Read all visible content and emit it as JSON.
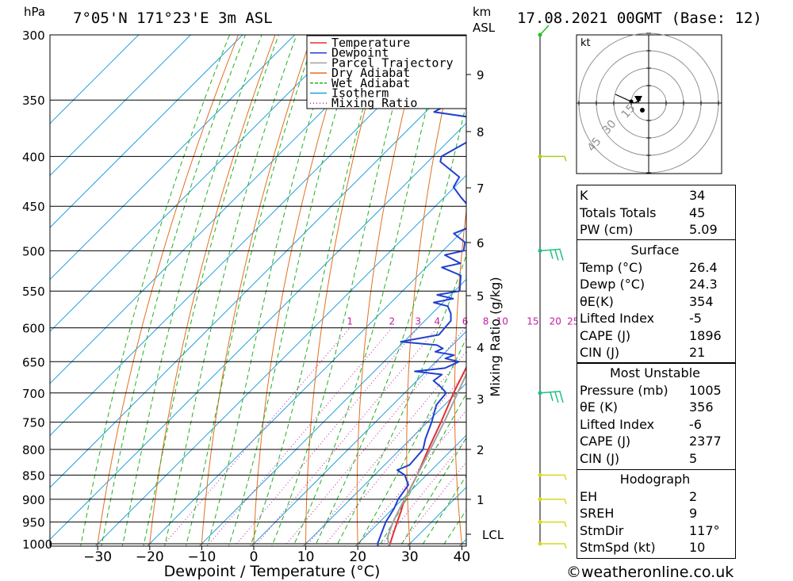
{
  "header": {
    "hpa_label": "hPa",
    "location": "7°05'N  171°23'E  3m  ASL",
    "km_label": "km",
    "asl_label": "ASL",
    "date": "17.08.2021  00GMT  (Base: 12)"
  },
  "chart_data": {
    "type": "line",
    "chart_kind": "skew-T log-p sounding diagram",
    "xlabel": "Dewpoint / Temperature (°C)",
    "ylabel": "hPa",
    "mixing_ratio_axis_label": "Mixing Ratio (g/kg)",
    "x_ticks": [
      -30,
      -20,
      -10,
      0,
      10,
      20,
      30,
      40
    ],
    "pressure_levels": [
      300,
      350,
      400,
      450,
      500,
      550,
      600,
      650,
      700,
      750,
      800,
      850,
      900,
      950,
      1000
    ],
    "km_ticks": [
      1,
      2,
      3,
      4,
      5,
      6,
      7,
      8,
      9
    ],
    "lcl_label": "LCL",
    "mixing_ratio_labels": [
      1,
      2,
      3,
      4,
      6,
      8,
      10,
      15,
      20,
      25
    ],
    "legend": [
      "Temperature",
      "Dewpoint",
      "Parcel Trajectory",
      "Dry Adiabat",
      "Wet Adiabat",
      "Isotherm",
      "Mixing Ratio"
    ],
    "colors": {
      "temperature": "#e03030",
      "dewpoint": "#2040d0",
      "parcel": "#a0a0a0",
      "dry_adiabat": "#e07020",
      "wet_adiabat": "#20b020",
      "isotherm": "#20a0e0",
      "mixing_ratio": "#c020a0",
      "wind": "#20c020"
    },
    "series": [
      {
        "name": "Temperature",
        "points": [
          [
            1005,
            26.4
          ],
          [
            1000,
            26.2
          ],
          [
            975,
            24.8
          ],
          [
            950,
            23.4
          ],
          [
            925,
            22.0
          ],
          [
            900,
            20.4
          ],
          [
            880,
            19.6
          ],
          [
            850,
            18.2
          ],
          [
            800,
            15.4
          ],
          [
            750,
            12.6
          ],
          [
            700,
            9.4
          ],
          [
            650,
            6.4
          ],
          [
            600,
            3.0
          ],
          [
            550,
            -1.4
          ],
          [
            500,
            -6.4
          ],
          [
            450,
            -12.4
          ],
          [
            400,
            -19.8
          ],
          [
            370,
            -24.2
          ],
          [
            350,
            -27.6
          ],
          [
            325,
            -31.8
          ],
          [
            300,
            -36.2
          ]
        ]
      },
      {
        "name": "Dewpoint",
        "points": [
          [
            1005,
            24.3
          ],
          [
            1000,
            23.8
          ],
          [
            950,
            21.2
          ],
          [
            920,
            20.2
          ],
          [
            900,
            19.2
          ],
          [
            870,
            18.4
          ],
          [
            850,
            15.8
          ],
          [
            840,
            13.4
          ],
          [
            830,
            14.8
          ],
          [
            800,
            14.4
          ],
          [
            780,
            12.8
          ],
          [
            750,
            10.8
          ],
          [
            720,
            8.4
          ],
          [
            700,
            8.0
          ],
          [
            690,
            5.8
          ],
          [
            680,
            3.2
          ],
          [
            670,
            3.6
          ],
          [
            665,
            -2.2
          ],
          [
            660,
            3.0
          ],
          [
            650,
            4.4
          ],
          [
            645,
            1.2
          ],
          [
            640,
            2.2
          ],
          [
            635,
            -2.0
          ],
          [
            630,
            -1.2
          ],
          [
            625,
            -3.0
          ],
          [
            620,
            -10.6
          ],
          [
            610,
            -4.6
          ],
          [
            600,
            -4.8
          ],
          [
            590,
            -5.0
          ],
          [
            580,
            -6.4
          ],
          [
            570,
            -8.4
          ],
          [
            565,
            -11.8
          ],
          [
            560,
            -8.8
          ],
          [
            555,
            -12.6
          ],
          [
            550,
            -9.0
          ],
          [
            540,
            -10.4
          ],
          [
            530,
            -11.8
          ],
          [
            520,
            -17.0
          ],
          [
            515,
            -14.2
          ],
          [
            505,
            -18.8
          ],
          [
            500,
            -16.0
          ],
          [
            490,
            -17.4
          ],
          [
            480,
            -21.2
          ],
          [
            470,
            -18.6
          ],
          [
            460,
            -21.2
          ],
          [
            450,
            -23.6
          ],
          [
            440,
            -27.0
          ],
          [
            430,
            -30.2
          ],
          [
            420,
            -31.0
          ],
          [
            405,
            -37.6
          ],
          [
            400,
            -38.4
          ],
          [
            390,
            -36.8
          ],
          [
            380,
            -35.2
          ],
          [
            365,
            -39.6
          ],
          [
            360,
            -48.4
          ],
          [
            350,
            -46.4
          ],
          [
            340,
            -47.4
          ],
          [
            320,
            -44.4
          ],
          [
            300,
            -50.2
          ]
        ]
      },
      {
        "name": "Parcel Trajectory",
        "points": [
          [
            1005,
            26.4
          ],
          [
            984,
            24.4
          ],
          [
            950,
            22.6
          ],
          [
            900,
            20.4
          ],
          [
            850,
            18.2
          ],
          [
            800,
            15.8
          ],
          [
            750,
            13.2
          ],
          [
            700,
            10.2
          ],
          [
            650,
            7.0
          ],
          [
            600,
            3.2
          ],
          [
            550,
            -1.0
          ],
          [
            500,
            -5.8
          ],
          [
            450,
            -11.4
          ],
          [
            400,
            -18.0
          ],
          [
            370,
            -22.6
          ]
        ]
      }
    ],
    "winds": [
      {
        "pressure": 1000,
        "barbs": "light"
      },
      {
        "pressure": 950,
        "barbs": "light"
      },
      {
        "pressure": 900,
        "barbs": "light"
      },
      {
        "pressure": 850,
        "barbs": "light"
      },
      {
        "pressure": 700,
        "barbs": "moderate"
      },
      {
        "pressure": 500,
        "barbs": "moderate"
      },
      {
        "pressure": 400,
        "barbs": "light"
      },
      {
        "pressure": 300,
        "barbs": "calm"
      }
    ]
  },
  "hodograph": {
    "unit_label": "kt",
    "ring_labels": [
      "15",
      "30",
      "45"
    ]
  },
  "indices": {
    "basic": [
      {
        "label": "K",
        "value": "34"
      },
      {
        "label": "Totals Totals",
        "value": "45"
      },
      {
        "label": "PW (cm)",
        "value": "5.09"
      }
    ],
    "surface": {
      "title": "Surface",
      "rows": [
        {
          "label": "Temp (°C)",
          "value": "26.4"
        },
        {
          "label": "Dewp (°C)",
          "value": "24.3"
        },
        {
          "label": "θE(K)",
          "value": "354"
        },
        {
          "label": "Lifted Index",
          "value": "-5"
        },
        {
          "label": "CAPE (J)",
          "value": "1896"
        },
        {
          "label": "CIN (J)",
          "value": "21"
        }
      ]
    },
    "most_unstable": {
      "title": "Most Unstable",
      "rows": [
        {
          "label": "Pressure (mb)",
          "value": "1005"
        },
        {
          "label": "θE (K)",
          "value": "356"
        },
        {
          "label": "Lifted Index",
          "value": "-6"
        },
        {
          "label": "CAPE (J)",
          "value": "2377"
        },
        {
          "label": "CIN (J)",
          "value": "5"
        }
      ]
    },
    "hodograph": {
      "title": "Hodograph",
      "rows": [
        {
          "label": "EH",
          "value": "2"
        },
        {
          "label": "SREH",
          "value": "9"
        },
        {
          "label": "StmDir",
          "value": "117°"
        },
        {
          "label": "StmSpd (kt)",
          "value": "10"
        }
      ]
    }
  },
  "footer": {
    "copyright": "©weatheronline.co.uk"
  }
}
